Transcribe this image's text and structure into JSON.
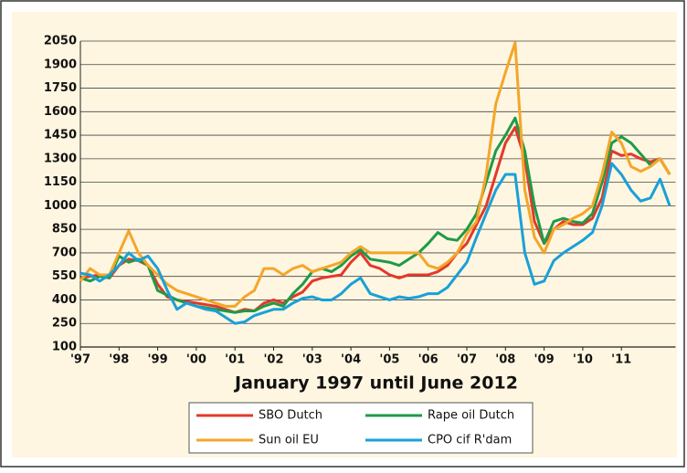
{
  "chart_data": {
    "type": "line",
    "x_label": "January 1997 until June 2012",
    "x": [
      1997,
      1997.25,
      1997.5,
      1997.75,
      1998,
      1998.25,
      1998.5,
      1998.75,
      1999,
      1999.25,
      1999.5,
      1999.75,
      2000,
      2000.25,
      2000.5,
      2000.75,
      2001,
      2001.25,
      2001.5,
      2001.75,
      2002,
      2002.25,
      2002.5,
      2002.75,
      2003,
      2003.25,
      2003.5,
      2003.75,
      2004,
      2004.25,
      2004.5,
      2004.75,
      2005,
      2005.25,
      2005.5,
      2005.75,
      2006,
      2006.25,
      2006.5,
      2006.75,
      2007,
      2007.25,
      2007.5,
      2007.75,
      2008,
      2008.25,
      2008.5,
      2008.75,
      2009,
      2009.25,
      2009.5,
      2009.75,
      2010,
      2010.25,
      2010.5,
      2010.75,
      2011,
      2011.25,
      2011.5,
      2011.75,
      2012,
      2012.25
    ],
    "series": [
      {
        "name": "SBO Dutch",
        "color": "#e2392b",
        "values": [
          540,
          550,
          560,
          540,
          620,
          660,
          650,
          620,
          500,
          420,
          400,
          390,
          380,
          370,
          360,
          340,
          320,
          340,
          330,
          380,
          400,
          380,
          420,
          450,
          520,
          540,
          550,
          560,
          640,
          700,
          620,
          600,
          560,
          540,
          560,
          560,
          560,
          580,
          620,
          700,
          760,
          880,
          1000,
          1200,
          1400,
          1500,
          1300,
          900,
          760,
          850,
          900,
          880,
          880,
          920,
          1050,
          1350,
          1320,
          1330,
          1300,
          1280,
          1300,
          1200
        ]
      },
      {
        "name": "Rape oil Dutch",
        "color": "#1f9a48",
        "values": [
          540,
          520,
          550,
          540,
          680,
          640,
          660,
          620,
          460,
          430,
          400,
          380,
          360,
          350,
          340,
          330,
          320,
          330,
          330,
          360,
          380,
          360,
          440,
          500,
          580,
          600,
          580,
          620,
          680,
          720,
          660,
          650,
          640,
          620,
          660,
          700,
          760,
          830,
          790,
          780,
          850,
          950,
          1150,
          1350,
          1450,
          1560,
          1350,
          1000,
          760,
          900,
          920,
          900,
          890,
          950,
          1150,
          1400,
          1440,
          1400,
          1330,
          1260,
          1300,
          1200
        ]
      },
      {
        "name": "Sun oil EU",
        "color": "#f4a62a",
        "values": [
          520,
          600,
          560,
          560,
          700,
          840,
          700,
          620,
          560,
          500,
          460,
          440,
          420,
          400,
          380,
          360,
          360,
          420,
          460,
          600,
          600,
          560,
          600,
          620,
          580,
          600,
          620,
          640,
          700,
          740,
          700,
          700,
          700,
          700,
          700,
          700,
          620,
          600,
          640,
          700,
          820,
          900,
          1200,
          1650,
          1850,
          2040,
          1100,
          800,
          700,
          850,
          880,
          920,
          950,
          1000,
          1200,
          1470,
          1400,
          1250,
          1220,
          1250,
          1300,
          1200
        ]
      },
      {
        "name": "CPO cif R'dam",
        "color": "#1aa0d8",
        "values": [
          570,
          560,
          520,
          560,
          620,
          700,
          650,
          680,
          600,
          460,
          340,
          380,
          360,
          340,
          330,
          290,
          250,
          260,
          300,
          320,
          340,
          340,
          380,
          410,
          420,
          400,
          400,
          440,
          500,
          540,
          440,
          420,
          400,
          420,
          410,
          420,
          440,
          440,
          480,
          560,
          640,
          800,
          950,
          1100,
          1200,
          1200,
          700,
          500,
          520,
          650,
          700,
          740,
          780,
          830,
          1000,
          1270,
          1200,
          1100,
          1030,
          1050,
          1170,
          1000
        ]
      }
    ],
    "xlim": [
      1997,
      2012.4
    ],
    "xticks": [
      {
        "value": 1997,
        "label": "'97"
      },
      {
        "value": 1998,
        "label": "'98"
      },
      {
        "value": 1999,
        "label": "'99"
      },
      {
        "value": 2000,
        "label": "'00"
      },
      {
        "value": 2001,
        "label": "'01"
      },
      {
        "value": 2002,
        "label": "'02"
      },
      {
        "value": 2003,
        "label": "'03"
      },
      {
        "value": 2004,
        "label": "'04"
      },
      {
        "value": 2005,
        "label": "'05"
      },
      {
        "value": 2006,
        "label": "'06"
      },
      {
        "value": 2007,
        "label": "'07"
      },
      {
        "value": 2008,
        "label": "'08"
      },
      {
        "value": 2009,
        "label": "'09"
      },
      {
        "value": 2010,
        "label": "'10"
      },
      {
        "value": 2011,
        "label": "'11"
      }
    ],
    "ylim": [
      100,
      2050
    ],
    "yticks": [
      100,
      250,
      400,
      550,
      700,
      850,
      1000,
      1150,
      1300,
      1450,
      1600,
      1750,
      1900,
      2050
    ],
    "grid": true
  }
}
